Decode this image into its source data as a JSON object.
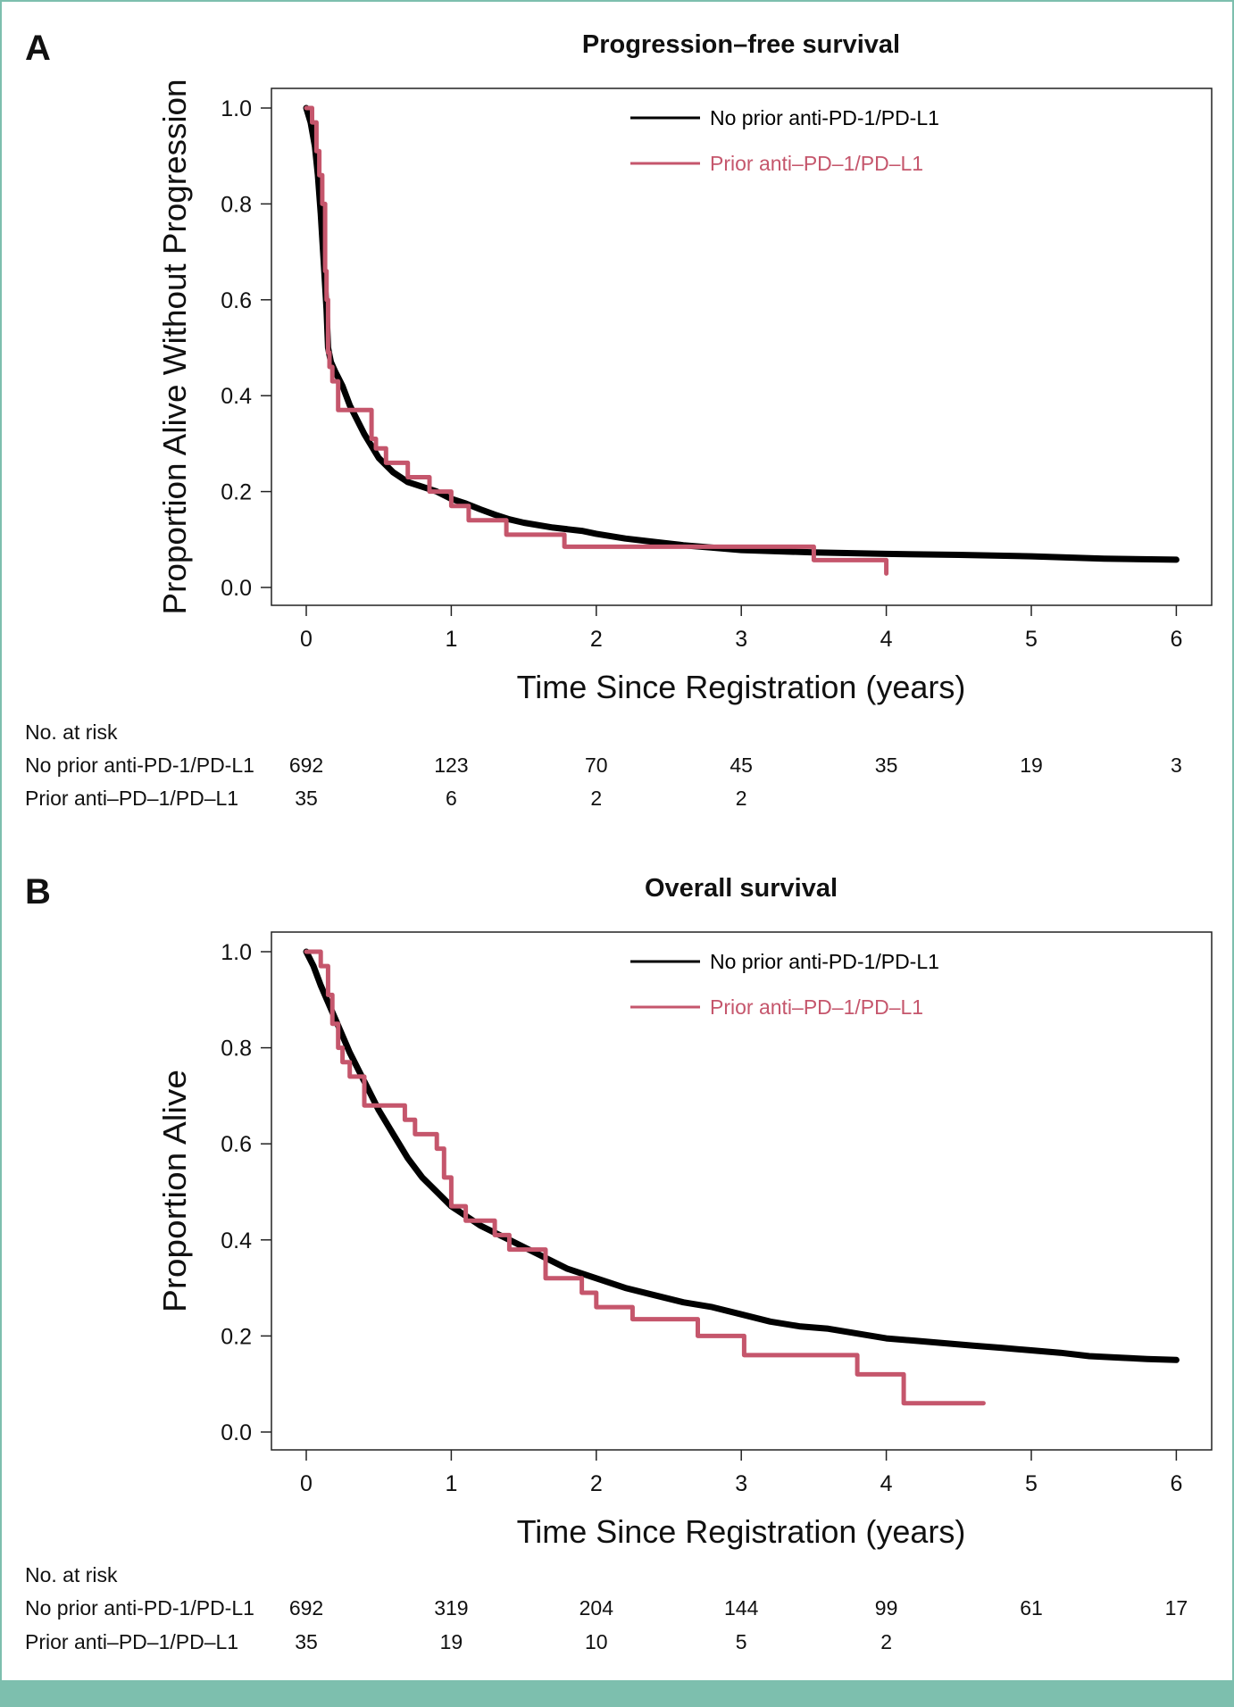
{
  "colors": {
    "no_prior": "#000000",
    "prior": "#c5566c",
    "border": "#7dbfae"
  },
  "icons": {},
  "chart_data": [
    {
      "type": "line",
      "panel_label": "A",
      "title": "Progression–free survival",
      "xlabel": "Time Since Registration (years)",
      "ylabel": "Proportion Alive Without Progression",
      "xlim": [
        0,
        6
      ],
      "ylim": [
        0,
        1
      ],
      "xticks": [
        "0",
        "1",
        "2",
        "3",
        "4",
        "5",
        "6"
      ],
      "yticks": [
        "0.0",
        "0.2",
        "0.4",
        "0.6",
        "0.8",
        "1.0"
      ],
      "legend": {
        "placement": "top-right",
        "entries": [
          "No prior anti-PD-1/PD-L1",
          "Prior anti–PD–1/PD–L1"
        ]
      },
      "series": [
        {
          "name": "No prior anti-PD-1/PD-L1",
          "color_key": "no_prior",
          "x": [
            0,
            0.03,
            0.06,
            0.08,
            0.1,
            0.12,
            0.14,
            0.15,
            0.17,
            0.2,
            0.25,
            0.3,
            0.4,
            0.5,
            0.6,
            0.7,
            0.8,
            0.9,
            1.0,
            1.1,
            1.2,
            1.3,
            1.4,
            1.5,
            1.7,
            1.9,
            2.0,
            2.2,
            2.4,
            2.6,
            2.8,
            3.0,
            3.5,
            4.0,
            4.5,
            5.0,
            5.5,
            6.0
          ],
          "y": [
            1.0,
            0.97,
            0.92,
            0.86,
            0.78,
            0.68,
            0.58,
            0.5,
            0.47,
            0.45,
            0.42,
            0.38,
            0.32,
            0.27,
            0.24,
            0.22,
            0.21,
            0.2,
            0.185,
            0.175,
            0.163,
            0.152,
            0.142,
            0.135,
            0.125,
            0.118,
            0.112,
            0.102,
            0.095,
            0.088,
            0.083,
            0.078,
            0.073,
            0.07,
            0.068,
            0.065,
            0.06,
            0.058
          ]
        },
        {
          "name": "Prior anti–PD–1/PD–L1",
          "color_key": "prior",
          "step": true,
          "x": [
            0,
            0.04,
            0.07,
            0.09,
            0.11,
            0.13,
            0.14,
            0.15,
            0.16,
            0.18,
            0.22,
            0.3,
            0.45,
            0.48,
            0.55,
            0.7,
            0.85,
            1.0,
            1.12,
            1.38,
            1.78,
            3.5,
            4.0
          ],
          "y": [
            1.0,
            0.97,
            0.91,
            0.86,
            0.8,
            0.66,
            0.6,
            0.49,
            0.46,
            0.43,
            0.37,
            0.37,
            0.31,
            0.29,
            0.26,
            0.23,
            0.2,
            0.17,
            0.14,
            0.11,
            0.085,
            0.057,
            0.029
          ]
        }
      ],
      "risk_table": {
        "header": "No. at risk",
        "rows": [
          {
            "label": "No prior anti-PD-1/PD-L1",
            "values": [
              "692",
              "123",
              "70",
              "45",
              "35",
              "19",
              "3"
            ]
          },
          {
            "label": "Prior anti–PD–1/PD–L1",
            "values": [
              "35",
              "6",
              "2",
              "2"
            ]
          }
        ]
      }
    },
    {
      "type": "line",
      "panel_label": "B",
      "title": "Overall survival",
      "xlabel": "Time Since Registration (years)",
      "ylabel": "Proportion Alive",
      "xlim": [
        0,
        6
      ],
      "ylim": [
        0,
        1
      ],
      "xticks": [
        "0",
        "1",
        "2",
        "3",
        "4",
        "5",
        "6"
      ],
      "yticks": [
        "0.0",
        "0.2",
        "0.4",
        "0.6",
        "0.8",
        "1.0"
      ],
      "legend": {
        "placement": "top-right",
        "entries": [
          "No prior anti-PD-1/PD-L1",
          "Prior anti–PD–1/PD–L1"
        ]
      },
      "series": [
        {
          "name": "No prior anti-PD-1/PD-L1",
          "color_key": "no_prior",
          "x": [
            0,
            0.05,
            0.1,
            0.2,
            0.3,
            0.4,
            0.5,
            0.6,
            0.7,
            0.8,
            0.9,
            1.0,
            1.2,
            1.4,
            1.6,
            1.8,
            2.0,
            2.2,
            2.4,
            2.6,
            2.8,
            3.0,
            3.2,
            3.4,
            3.6,
            3.8,
            4.0,
            4.2,
            4.4,
            4.6,
            4.8,
            5.0,
            5.2,
            5.4,
            5.6,
            5.8,
            6.0
          ],
          "y": [
            1.0,
            0.97,
            0.93,
            0.86,
            0.79,
            0.73,
            0.67,
            0.62,
            0.57,
            0.53,
            0.5,
            0.47,
            0.43,
            0.4,
            0.37,
            0.34,
            0.32,
            0.3,
            0.285,
            0.27,
            0.26,
            0.245,
            0.23,
            0.22,
            0.215,
            0.205,
            0.195,
            0.19,
            0.185,
            0.18,
            0.175,
            0.17,
            0.165,
            0.158,
            0.155,
            0.152,
            0.15
          ]
        },
        {
          "name": "Prior anti–PD–1/PD–L1",
          "color_key": "prior",
          "step": true,
          "x": [
            0,
            0.1,
            0.15,
            0.18,
            0.22,
            0.25,
            0.3,
            0.4,
            0.68,
            0.75,
            0.9,
            0.95,
            1.0,
            1.1,
            1.3,
            1.4,
            1.45,
            1.65,
            1.9,
            2.0,
            2.25,
            2.7,
            3.02,
            3.8,
            4.12,
            4.67
          ],
          "y": [
            1.0,
            0.97,
            0.91,
            0.85,
            0.8,
            0.77,
            0.74,
            0.68,
            0.65,
            0.62,
            0.59,
            0.53,
            0.47,
            0.44,
            0.41,
            0.38,
            0.38,
            0.32,
            0.29,
            0.26,
            0.235,
            0.2,
            0.16,
            0.12,
            0.06,
            0.06
          ]
        }
      ],
      "risk_table": {
        "header": "No. at risk",
        "rows": [
          {
            "label": "No prior anti-PD-1/PD-L1",
            "values": [
              "692",
              "319",
              "204",
              "144",
              "99",
              "61",
              "17"
            ]
          },
          {
            "label": "Prior anti–PD–1/PD–L1",
            "values": [
              "35",
              "19",
              "10",
              "5",
              "2"
            ]
          }
        ]
      }
    }
  ]
}
